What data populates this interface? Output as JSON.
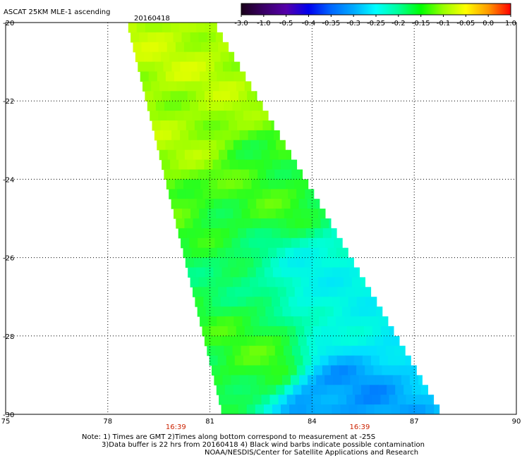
{
  "header": {
    "title": "ASCAT 25KM MLE-1 ascending",
    "date": "20160418"
  },
  "colorbar": {
    "colors": [
      "#1a001a",
      "#3a0066",
      "#5500aa",
      "#0000ee",
      "#0066ff",
      "#00aaff",
      "#00ffff",
      "#00ff99",
      "#00ff00",
      "#99ff00",
      "#ffff00",
      "#ff9900",
      "#ff0000"
    ],
    "labels": [
      "-3.0",
      "-1.0",
      "-0.5",
      "-0.4",
      "-0.35",
      "-0.3",
      "-0.25",
      "-0.2",
      "-0.15",
      "-0.1",
      "-0.05",
      "0.0",
      "1.0"
    ]
  },
  "chart_data": {
    "type": "heatmap",
    "title": "ASCAT 25KM MLE-1 ascending",
    "xlim": [
      75,
      90
    ],
    "ylim": [
      -30,
      -20
    ],
    "x_ticks": [
      "75",
      "78",
      "81",
      "84",
      "87",
      "90"
    ],
    "y_ticks": [
      "-20",
      "-22",
      "-24",
      "-26",
      "-28",
      "-30"
    ],
    "grid": true,
    "swath": {
      "top_lon_range": [
        78.6,
        81.2
      ],
      "bottom_lon_range": [
        81.4,
        87.9
      ]
    },
    "time_labels": [
      {
        "lon": 80.0,
        "text": "16:39"
      },
      {
        "lon": 85.4,
        "text": "16:39"
      }
    ],
    "value_regions": [
      {
        "lat": -21,
        "lon": 80.5,
        "value": -0.12
      },
      {
        "lat": -22,
        "lon": 80.5,
        "value": -0.13
      },
      {
        "lat": -24,
        "lon": 83.0,
        "value": -0.17
      },
      {
        "lat": -26.8,
        "lon": 84.5,
        "value": -0.26
      },
      {
        "lat": -28.5,
        "lon": 82.5,
        "value": -0.17
      },
      {
        "lat": -29.8,
        "lon": 84.5,
        "value": -0.34
      }
    ]
  },
  "notes": {
    "line1": "Note: 1) Times are GMT 2)Times along bottom correspond to measurement at -25S",
    "line2": "3)Data buffer is 22 hrs from 20160418 4) Black wind barbs indicate possible contamination",
    "line3": "NOAA/NESDIS/Center for Satellite Applications and Research"
  }
}
